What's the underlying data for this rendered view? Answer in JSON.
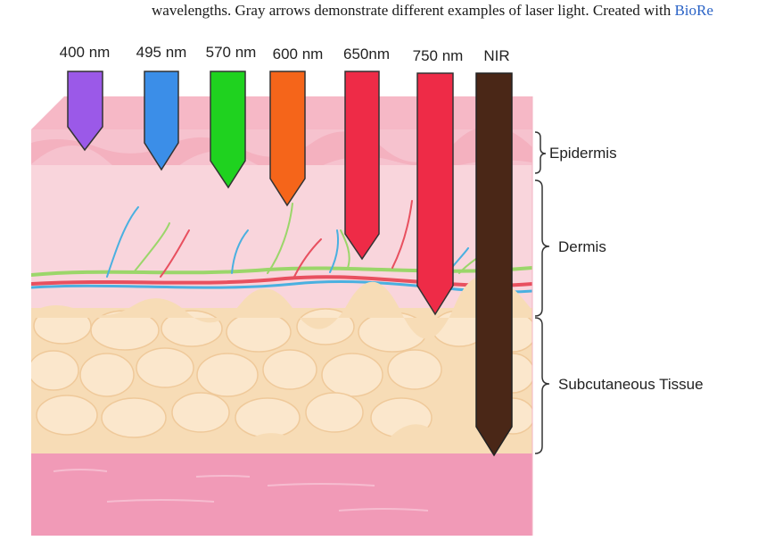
{
  "caption": {
    "line_partial_above": "",
    "line_main": "wavelengths. Gray arrows demonstrate different examples of laser light. Created with ",
    "link_text": "BioRe"
  },
  "wavelength_labels": [
    "400 nm",
    "495 nm",
    "570 nm",
    "600 nm",
    "650nm",
    "750 nm",
    "NIR"
  ],
  "layers": {
    "epidermis": "Epidermis",
    "dermis": "Dermis",
    "subcutaneous": "Subcutaneous Tissue"
  },
  "colors": {
    "arrow_400": "#9b59e8",
    "arrow_495": "#3b8ee8",
    "arrow_570": "#1fd21f",
    "arrow_600": "#f5651a",
    "arrow_650": "#ee2b47",
    "arrow_750": "#ee2b47",
    "arrow_nir": "#4a2717",
    "epidermis": "#f9c9d3",
    "dermis": "#f8d3da",
    "subcutaneous": "#f7ddb8",
    "muscle": "#f08fb0"
  }
}
